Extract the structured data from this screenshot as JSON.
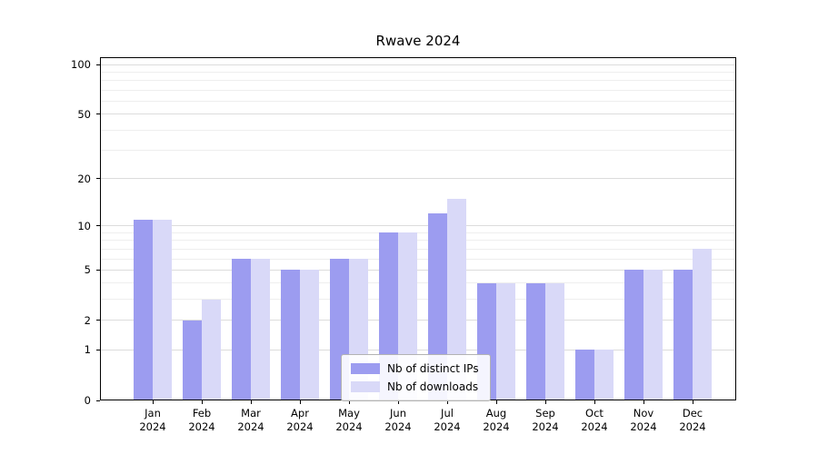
{
  "chart_data": {
    "type": "bar",
    "title": "Rwave 2024",
    "year": "2024",
    "categories": [
      "Jan",
      "Feb",
      "Mar",
      "Apr",
      "May",
      "Jun",
      "Jul",
      "Aug",
      "Sep",
      "Oct",
      "Nov",
      "Dec"
    ],
    "series": [
      {
        "key": "distinct-ips",
        "name": "Nb of distinct IPs",
        "color": "#9c9cf0",
        "values": [
          11,
          2,
          6,
          5,
          6,
          9,
          12,
          4,
          4,
          1,
          5,
          5
        ]
      },
      {
        "key": "downloads",
        "name": "Nb of downloads",
        "color": "#d9d9f8",
        "values": [
          11,
          3,
          6,
          5,
          6,
          9,
          15,
          4,
          4,
          1,
          5,
          7
        ]
      }
    ],
    "y_ticks": [
      0,
      1,
      2,
      5,
      10,
      20,
      50,
      100
    ],
    "y_minor_ticks": [
      3,
      4,
      6,
      7,
      8,
      9,
      30,
      40,
      60,
      70,
      80,
      90
    ],
    "yscale": "log1p",
    "ylim": [
      0,
      110
    ],
    "grid": "horizontal",
    "legend_position": "lower center"
  }
}
